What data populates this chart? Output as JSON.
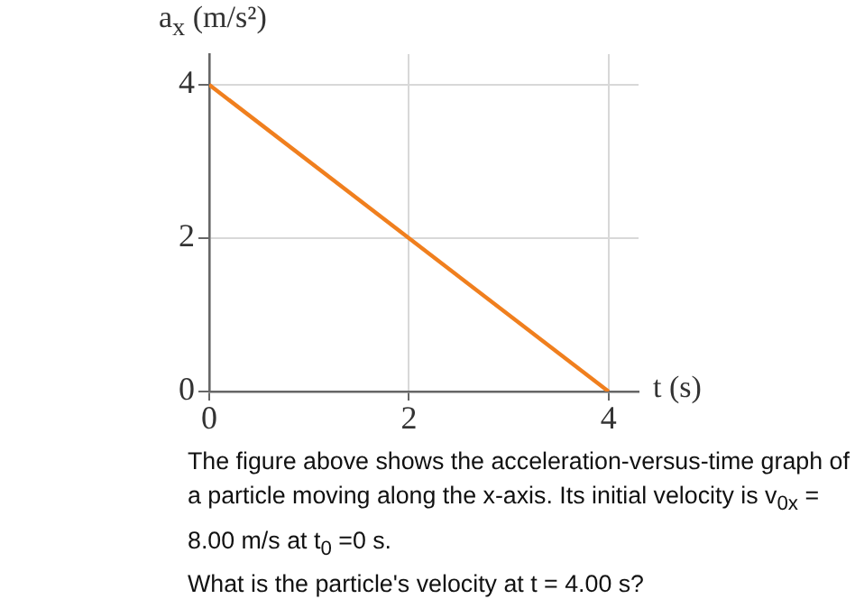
{
  "chart_data": {
    "type": "line",
    "xlabel": "t (s)",
    "ylabel": "a$_{x}$ (m/s²)",
    "x": [
      0,
      4
    ],
    "series": [
      {
        "color": "#f07f1e",
        "values": [
          4,
          0
        ]
      }
    ],
    "xlim": [
      0,
      4.3
    ],
    "ylim": [
      0,
      4.4
    ],
    "xticks": [
      0,
      2,
      4
    ],
    "yticks": [
      0,
      2,
      4
    ],
    "grid": true,
    "legend": false,
    "marker": "none",
    "line_style": "solid",
    "annotations": [
      "The figure above shows the acceleration-versus-time graph of a particle moving along the x-axis. Its initial velocity is v$_{0x}$ = 8.00 m/s at t$_{0}$ =0 s.",
      "What is the particle's velocity at t = 4.00 s?"
    ]
  }
}
